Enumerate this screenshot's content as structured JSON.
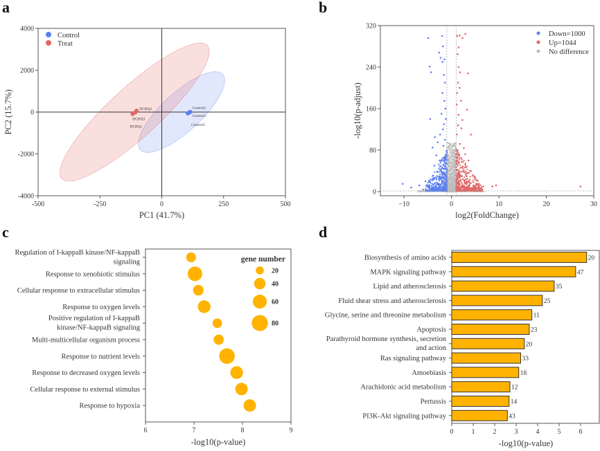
{
  "panels": {
    "a": "a",
    "b": "b",
    "c": "c",
    "d": "d"
  },
  "chart_data": [
    {
      "id": "a",
      "type": "scatter",
      "title": "",
      "xlabel": "PC1 (41.7%)",
      "ylabel": "PC2 (15.7%)",
      "xlim": [
        -500,
        500
      ],
      "ylim": [
        -4000,
        4000
      ],
      "xticks": [
        -500,
        -250,
        0,
        250,
        500
      ],
      "yticks": [
        -4000,
        -2000,
        0,
        2000,
        4000
      ],
      "legend_position": "top-left",
      "series": [
        {
          "name": "Control",
          "color": "#5b7ff0",
          "points": [
            {
              "label": "Control2",
              "x": 115,
              "y": 10
            },
            {
              "label": "Control1",
              "x": 110,
              "y": -30
            },
            {
              "label": "Control3",
              "x": 105,
              "y": -60
            }
          ],
          "ellipse": {
            "cx": 50,
            "cy": 0,
            "rx": 310,
            "ry": 1300,
            "angle_deg": 0,
            "corners": [
              [
                -95,
                -1900
              ],
              [
                255,
                1900
              ]
            ]
          }
        },
        {
          "name": "Treat",
          "color": "#e06666",
          "points": [
            {
              "label": "DCBQ2",
              "x": -102,
              "y": 60
            },
            {
              "label": "DCBQ3",
              "x": -107,
              "y": -20
            },
            {
              "label": "DCBQ1",
              "x": -118,
              "y": -90
            }
          ],
          "ellipse": {
            "corners": [
              [
                -420,
                -3350
              ],
              [
                200,
                3350
              ]
            ]
          }
        }
      ]
    },
    {
      "id": "b",
      "type": "scatter",
      "title": "",
      "xlabel": "log2(FoldChange)",
      "ylabel": "-log10(p-adjust)",
      "xlim": [
        -15,
        30
      ],
      "ylim": [
        -8,
        320
      ],
      "xticks": [
        -10,
        0,
        10,
        20,
        30
      ],
      "yticks": [
        0,
        80,
        160,
        240,
        320
      ],
      "thresholds": {
        "x": [
          -1,
          1
        ],
        "y": 1.3
      },
      "legend_position": "top-right",
      "series": [
        {
          "name": "Down=1000",
          "color": "#5b7ff0",
          "count": 1000
        },
        {
          "name": "Up=1044",
          "color": "#e06666",
          "count": 1044
        },
        {
          "name": "No difference",
          "color": "#bdbdbd"
        }
      ],
      "sample_points": {
        "down": [
          [
            -4.9,
            296
          ],
          [
            -2,
            300
          ],
          [
            -4.6,
            241
          ],
          [
            -4.3,
            230
          ],
          [
            -4.5,
            140
          ],
          [
            -3.5,
            105
          ],
          [
            -4,
            85
          ],
          [
            -10.3,
            15
          ],
          [
            -8.5,
            8
          ],
          [
            -6,
            4
          ],
          [
            -1.8,
            280
          ],
          [
            -2.6,
            268
          ],
          [
            -1.5,
            255
          ],
          [
            -1.9,
            250
          ],
          [
            -2.3,
            258
          ],
          [
            -1.6,
            225
          ],
          [
            -1.4,
            210
          ],
          [
            -1.9,
            190
          ],
          [
            -1.5,
            175
          ],
          [
            -1.3,
            160
          ],
          [
            -2.1,
            150
          ],
          [
            -1.6,
            130
          ],
          [
            -1.8,
            120
          ],
          [
            -2.4,
            110
          ],
          [
            -2.9,
            95
          ],
          [
            -3.2,
            70
          ],
          [
            -2.5,
            60
          ],
          [
            -3.6,
            50
          ],
          [
            -4.1,
            22
          ],
          [
            -5.5,
            20
          ],
          [
            -6.8,
            12
          ],
          [
            -3,
            30
          ],
          [
            -2.2,
            40
          ],
          [
            -1.7,
            88
          ],
          [
            -1.4,
            100
          ],
          [
            -1.2,
            140
          ],
          [
            -1.1,
            70
          ],
          [
            -1.5,
            50
          ],
          [
            -2,
            20
          ]
        ],
        "up": [
          [
            1.2,
            300
          ],
          [
            1.7,
            301
          ],
          [
            2.9,
            304
          ],
          [
            2.3,
            296
          ],
          [
            1.5,
            278
          ],
          [
            1.3,
            265
          ],
          [
            1.5,
            240
          ],
          [
            1.8,
            230
          ],
          [
            3.5,
            228
          ],
          [
            1.4,
            210
          ],
          [
            1.7,
            200
          ],
          [
            1.2,
            190
          ],
          [
            2.0,
            175
          ],
          [
            1.1,
            168
          ],
          [
            3.3,
            158
          ],
          [
            1.5,
            148
          ],
          [
            2.3,
            138
          ],
          [
            1.4,
            128
          ],
          [
            2.1,
            122
          ],
          [
            4.1,
            110
          ],
          [
            1.8,
            92
          ],
          [
            2.6,
            84
          ],
          [
            1.3,
            80
          ],
          [
            2.9,
            72
          ],
          [
            3.6,
            60
          ],
          [
            2.4,
            48
          ],
          [
            3.9,
            40
          ],
          [
            4.8,
            28
          ],
          [
            5.3,
            15
          ],
          [
            6.7,
            10
          ],
          [
            8.6,
            10
          ],
          [
            9.4,
            12
          ],
          [
            27.2,
            10
          ],
          [
            1.2,
            60
          ],
          [
            1.6,
            40
          ],
          [
            2.2,
            30
          ],
          [
            1.1,
            110
          ],
          [
            1.9,
            20
          ],
          [
            3.2,
            18
          ]
        ]
      }
    },
    {
      "id": "c",
      "type": "scatter",
      "subtype": "bubble",
      "title": "",
      "xlabel": "-log10(p-value)",
      "ylabel": "",
      "xlim": [
        6,
        9
      ],
      "xticks": [
        6,
        7,
        8,
        9
      ],
      "legend_title": "gene number",
      "legend_position": "top-right",
      "legend_sizes": [
        20,
        40,
        60,
        80
      ],
      "color": "#ffb300",
      "categories": [
        "Regulation of I-kappaB kinase/NF-kappaB signaling",
        "Response to xenobiotic stimulus",
        "Cellular response to extracellular stimulus",
        "Response to oxygen levels",
        "Positive regulation of I-kappaB kinase/NF-kappaB signaling",
        "Multi-multicellular organism process",
        "Response to nutrient levels",
        "Response to decreased oxygen levels",
        "Cellular response to external stimulus",
        "Response to hypoxia"
      ],
      "category_lines": [
        [
          "Regulation of I-kappaB kinase/NF-kappaB",
          "signaling"
        ],
        [
          "Response to xenobiotic stimulus"
        ],
        [
          "Cellular response to extracellular stimulus"
        ],
        [
          "Response to oxygen levels"
        ],
        [
          "Positive regulation of I-kappaB",
          "kinase/NF-kappaB signaling"
        ],
        [
          "Multi-multicellular organism process"
        ],
        [
          "Response to nutrient levels"
        ],
        [
          "Response to decreased oxygen levels"
        ],
        [
          "Cellular response to external stimulus"
        ],
        [
          "Response to hypoxia"
        ]
      ],
      "x": [
        6.94,
        7.02,
        7.09,
        7.21,
        7.48,
        7.51,
        7.68,
        7.88,
        7.98,
        8.15
      ],
      "gene_number": [
        30,
        65,
        35,
        50,
        28,
        32,
        75,
        50,
        48,
        48
      ]
    },
    {
      "id": "d",
      "type": "bar",
      "orientation": "horizontal",
      "title": "",
      "xlabel": "-log10(p-value)",
      "ylabel": "",
      "xlim": [
        0,
        6.8
      ],
      "xticks": [
        0,
        1,
        2,
        3,
        4,
        5,
        6
      ],
      "color": "#ffb300",
      "categories": [
        "Biosynthesis of amino acids",
        "MAPK signaling pathway",
        "Lipid and atherosclerosis",
        "Fluid shear stress and atherosclerosis",
        "Glycine, serine and threonine metabolism",
        "Apoptosis",
        "Parathyroid hormone synthesis, secretion and action",
        "Ras signaling pathway",
        "Amoebiasis",
        "Arachidonic acid metabolism",
        "Pertussis",
        "PI3K-Akt signaling pathway"
      ],
      "category_lines": [
        [
          "Biosynthesis of amino acids"
        ],
        [
          "MAPK signaling pathway"
        ],
        [
          "Lipid and atherosclerosis"
        ],
        [
          "Fluid shear stress and atherosclerosis"
        ],
        [
          "Glycine, serine and threonine metabolism"
        ],
        [
          "Apoptosis"
        ],
        [
          "Parathyroid hormone synthesis, secretion",
          "and action"
        ],
        [
          "Ras signaling pathway"
        ],
        [
          "Amoebiasis"
        ],
        [
          "Arachidonic acid metabolism"
        ],
        [
          "Pertussis"
        ],
        [
          "PI3K-Akt signaling pathway"
        ]
      ],
      "values": [
        6.28,
        5.77,
        4.77,
        4.22,
        3.73,
        3.61,
        3.38,
        3.21,
        3.12,
        2.71,
        2.67,
        2.59
      ],
      "data_labels": [
        "20",
        "47",
        "35",
        "25",
        "11",
        "23",
        "20",
        "33",
        "18",
        "12",
        "14",
        "43"
      ]
    }
  ]
}
